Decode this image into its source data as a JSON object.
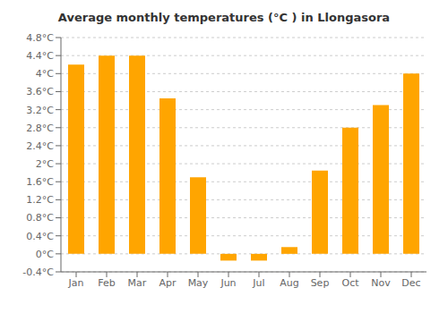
{
  "chart_data": {
    "type": "bar",
    "title": "Average monthly temperatures (°C ) in Llongasora",
    "categories": [
      "Jan",
      "Feb",
      "Mar",
      "Apr",
      "May",
      "Jun",
      "Jul",
      "Aug",
      "Sep",
      "Oct",
      "Nov",
      "Dec"
    ],
    "values": [
      4.2,
      4.4,
      4.4,
      3.45,
      1.7,
      -0.15,
      -0.15,
      0.15,
      1.85,
      2.8,
      3.3,
      4.0
    ],
    "color": "#FFA500",
    "ylim": [
      -0.4,
      4.8
    ],
    "yticks": [
      {
        "value": -0.4,
        "label": "-0.4°C"
      },
      {
        "value": 0,
        "label": "0°C"
      },
      {
        "value": 0.4,
        "label": "0.4°C"
      },
      {
        "value": 0.8,
        "label": "0.8°C"
      },
      {
        "value": 1.2,
        "label": "1.2°C"
      },
      {
        "value": 1.6,
        "label": "1.6°C"
      },
      {
        "value": 2,
        "label": "2°C"
      },
      {
        "value": 2.4,
        "label": "2.4°C"
      },
      {
        "value": 2.8,
        "label": "2.8°C"
      },
      {
        "value": 3.2,
        "label": "3.2°C"
      },
      {
        "value": 3.6,
        "label": "3.6°C"
      },
      {
        "value": 4,
        "label": "4°C"
      },
      {
        "value": 4.4,
        "label": "4.4°C"
      },
      {
        "value": 4.8,
        "label": "4.8°C"
      }
    ],
    "grid": true
  }
}
